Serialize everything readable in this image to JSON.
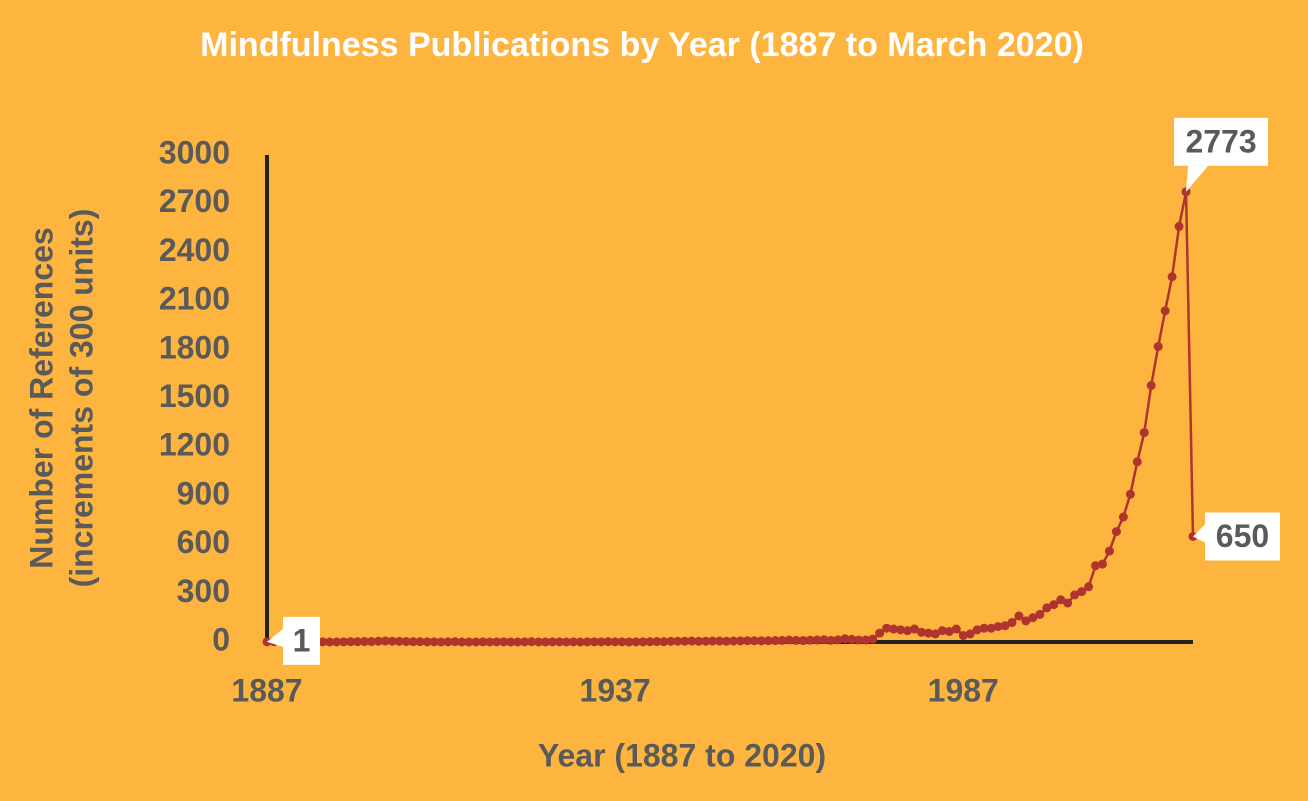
{
  "chart_data": {
    "type": "line",
    "title": "Mindfulness Publications by Year (1887 to March 2020)",
    "x_label": "Year (1887 to 2020)",
    "y_label": [
      "Number of References",
      "(increments of 300 units)"
    ],
    "x": [
      1887,
      1888,
      1889,
      1890,
      1891,
      1892,
      1893,
      1894,
      1895,
      1896,
      1897,
      1898,
      1899,
      1900,
      1901,
      1902,
      1903,
      1904,
      1905,
      1906,
      1907,
      1908,
      1909,
      1910,
      1911,
      1912,
      1913,
      1914,
      1915,
      1916,
      1917,
      1918,
      1919,
      1920,
      1921,
      1922,
      1923,
      1924,
      1925,
      1926,
      1927,
      1928,
      1929,
      1930,
      1931,
      1932,
      1933,
      1934,
      1935,
      1936,
      1937,
      1938,
      1939,
      1940,
      1941,
      1942,
      1943,
      1944,
      1945,
      1946,
      1947,
      1948,
      1949,
      1950,
      1951,
      1952,
      1953,
      1954,
      1955,
      1956,
      1957,
      1958,
      1959,
      1960,
      1961,
      1962,
      1963,
      1964,
      1965,
      1966,
      1967,
      1968,
      1969,
      1970,
      1971,
      1972,
      1973,
      1974,
      1975,
      1976,
      1977,
      1978,
      1979,
      1980,
      1981,
      1982,
      1983,
      1984,
      1985,
      1986,
      1987,
      1988,
      1989,
      1990,
      1991,
      1992,
      1993,
      1994,
      1995,
      1996,
      1997,
      1998,
      1999,
      2000,
      2001,
      2002,
      2003,
      2004,
      2005,
      2006,
      2007,
      2008,
      2009,
      2010,
      2011,
      2012,
      2013,
      2014,
      2015,
      2016,
      2017,
      2018,
      2019,
      2020
    ],
    "series": [
      {
        "name": "References",
        "color": "#b0342e",
        "values": [
          1,
          2,
          3,
          2,
          1,
          2,
          0,
          1,
          1,
          0,
          0,
          1,
          2,
          2,
          3,
          3,
          5,
          6,
          5,
          4,
          3,
          2,
          2,
          1,
          1,
          0,
          1,
          2,
          0,
          0,
          0,
          1,
          0,
          1,
          1,
          0,
          0,
          1,
          2,
          0,
          0,
          1,
          1,
          0,
          1,
          0,
          1,
          1,
          1,
          2,
          1,
          1,
          0,
          1,
          1,
          2,
          3,
          2,
          4,
          5,
          5,
          6,
          4,
          5,
          6,
          6,
          5,
          6,
          7,
          8,
          8,
          7,
          8,
          9,
          10,
          12,
          10,
          9,
          11,
          12,
          14,
          10,
          13,
          20,
          16,
          12,
          12,
          18,
          55,
          85,
          80,
          75,
          70,
          80,
          60,
          55,
          50,
          70,
          65,
          80,
          40,
          50,
          75,
          85,
          85,
          95,
          100,
          120,
          160,
          130,
          150,
          170,
          210,
          230,
          260,
          240,
          290,
          310,
          340,
          470,
          480,
          560,
          680,
          770,
          910,
          1110,
          1290,
          1580,
          1820,
          2040,
          2250,
          2560,
          2773,
          650
        ]
      }
    ],
    "labeled_points": [
      0,
      132,
      133
    ],
    "xlim": [
      1887,
      2020
    ],
    "xticks": [
      1887,
      1937,
      1987
    ],
    "ylim": [
      0,
      3000
    ],
    "yticks": [
      0,
      300,
      600,
      900,
      1200,
      1500,
      1800,
      2100,
      2400,
      2700,
      3000
    ]
  }
}
